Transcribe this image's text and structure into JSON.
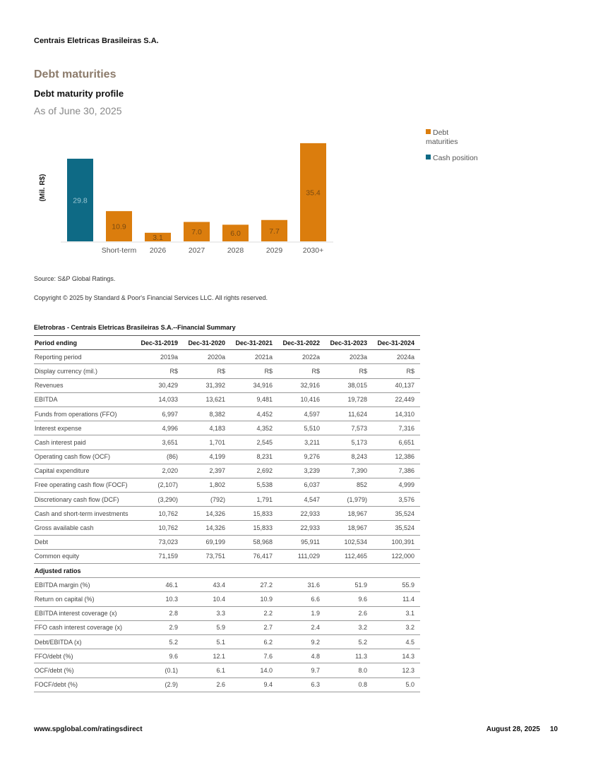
{
  "header": {
    "company": "Centrais Eletricas Brasileiras S.A."
  },
  "section_title": "Debt maturities",
  "chart_data": {
    "type": "bar",
    "title": "Debt maturity profile",
    "subtitle": "As of June 30, 2025",
    "ylabel": "(Mil. R$)",
    "xlabel": "",
    "categories": [
      "",
      "Short-term",
      "2026",
      "2027",
      "2028",
      "2029",
      "2030+"
    ],
    "series": [
      {
        "name": "Cash position",
        "color": "#0e6a85",
        "values": [
          29.8,
          null,
          null,
          null,
          null,
          null,
          null
        ]
      },
      {
        "name": "Debt maturities",
        "color": "#db7d0d",
        "values": [
          null,
          10.9,
          3.1,
          7.0,
          6.0,
          7.7,
          35.4
        ]
      }
    ],
    "value_labels": [
      "29.8",
      "10.9",
      "3.1",
      "7.0",
      "6.0",
      "7.7",
      "35.4"
    ],
    "ylim": [
      0,
      40
    ],
    "grid": false,
    "legend": {
      "placement": "top-right",
      "entries": [
        "Debt maturities",
        "Cash position"
      ]
    }
  },
  "source": "Source: S&P Global Ratings.",
  "copyright": "Copyright © 2025 by Standard & Poor's Financial Services LLC. All rights reserved.",
  "table": {
    "title": "Eletrobras - Centrais Eletricas Brasileiras S.A.--Financial Summary",
    "headers": [
      "Period ending",
      "Dec-31-2019",
      "Dec-31-2020",
      "Dec-31-2021",
      "Dec-31-2022",
      "Dec-31-2023",
      "Dec-31-2024"
    ],
    "rows": [
      [
        "Reporting period",
        "2019a",
        "2020a",
        "2021a",
        "2022a",
        "2023a",
        "2024a"
      ],
      [
        "Display currency  (mil.)",
        "R$",
        "R$",
        "R$",
        "R$",
        "R$",
        "R$"
      ],
      [
        "Revenues",
        "30,429",
        "31,392",
        "34,916",
        "32,916",
        "38,015",
        "40,137"
      ],
      [
        "EBITDA",
        "14,033",
        "13,621",
        "9,481",
        "10,416",
        "19,728",
        "22,449"
      ],
      [
        "Funds from operations (FFO)",
        "6,997",
        "8,382",
        "4,452",
        "4,597",
        "11,624",
        "14,310"
      ],
      [
        "Interest expense",
        "4,996",
        "4,183",
        "4,352",
        "5,510",
        "7,573",
        "7,316"
      ],
      [
        "Cash interest paid",
        "3,651",
        "1,701",
        "2,545",
        "3,211",
        "5,173",
        "6,651"
      ],
      [
        "Operating cash flow (OCF)",
        "(86)",
        "4,199",
        "8,231",
        "9,276",
        "8,243",
        "12,386"
      ],
      [
        "Capital expenditure",
        "2,020",
        "2,397",
        "2,692",
        "3,239",
        "7,390",
        "7,386"
      ],
      [
        "Free operating cash flow (FOCF)",
        "(2,107)",
        "1,802",
        "5,538",
        "6,037",
        "852",
        "4,999"
      ],
      [
        "Discretionary cash flow (DCF)",
        "(3,290)",
        "(792)",
        "1,791",
        "4,547",
        "(1,979)",
        "3,576"
      ],
      [
        "Cash and short-term investments",
        "10,762",
        "14,326",
        "15,833",
        "22,933",
        "18,967",
        "35,524"
      ],
      [
        "Gross available cash",
        "10,762",
        "14,326",
        "15,833",
        "22,933",
        "18,967",
        "35,524"
      ],
      [
        "Debt",
        "73,023",
        "69,199",
        "58,968",
        "95,911",
        "102,534",
        "100,391"
      ],
      [
        "Common equity",
        "71,159",
        "73,751",
        "76,417",
        "111,029",
        "112,465",
        "122,000"
      ]
    ],
    "ratios_heading": "Adjusted ratios",
    "ratio_rows": [
      [
        "EBITDA margin (%)",
        "46.1",
        "43.4",
        "27.2",
        "31.6",
        "51.9",
        "55.9"
      ],
      [
        "Return on capital (%)",
        "10.3",
        "10.4",
        "10.9",
        "6.6",
        "9.6",
        "11.4"
      ],
      [
        "EBITDA interest coverage (x)",
        "2.8",
        "3.3",
        "2.2",
        "1.9",
        "2.6",
        "3.1"
      ],
      [
        "FFO cash interest coverage (x)",
        "2.9",
        "5.9",
        "2.7",
        "2.4",
        "3.2",
        "3.2"
      ],
      [
        "Debt/EBITDA (x)",
        "5.2",
        "5.1",
        "6.2",
        "9.2",
        "5.2",
        "4.5"
      ],
      [
        "FFO/debt (%)",
        "9.6",
        "12.1",
        "7.6",
        "4.8",
        "11.3",
        "14.3"
      ],
      [
        "OCF/debt (%)",
        "(0.1)",
        "6.1",
        "14.0",
        "9.7",
        "8.0",
        "12.3"
      ],
      [
        "FOCF/debt (%)",
        "(2.9)",
        "2.6",
        "9.4",
        "6.3",
        "0.8",
        "5.0"
      ]
    ]
  },
  "footer": {
    "url": "www.spglobal.com/ratingsdirect",
    "date": "August 28, 2025",
    "page": "10"
  }
}
